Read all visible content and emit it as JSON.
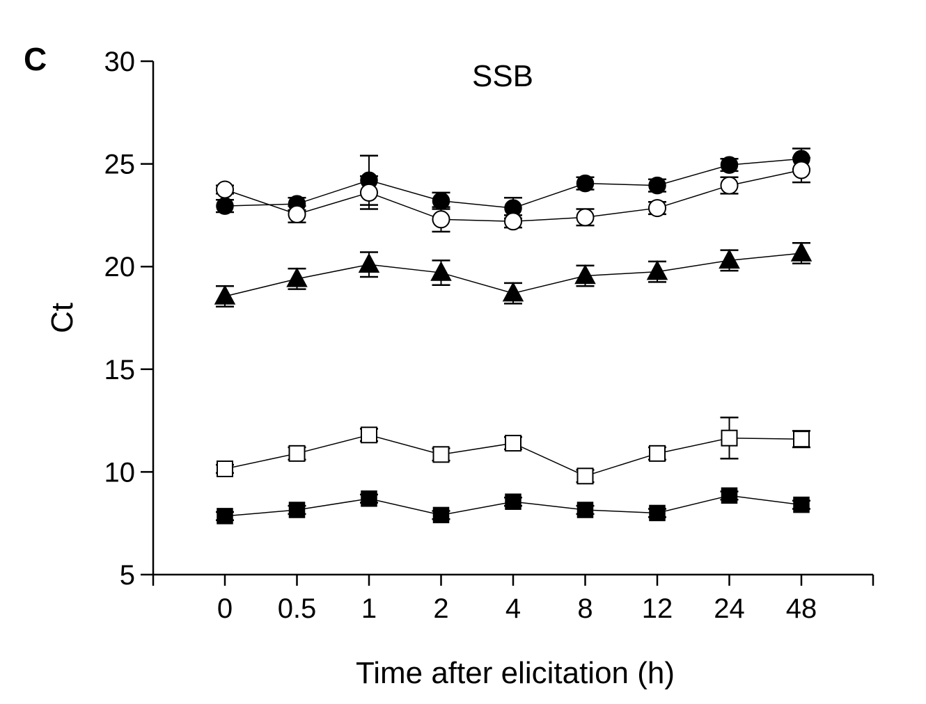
{
  "panel_label": "C",
  "chart_data": {
    "type": "line",
    "title": "SSB",
    "xlabel": "Time after elicitation (h)",
    "ylabel": "Ct",
    "categories": [
      "0",
      "0.5",
      "1",
      "2",
      "4",
      "8",
      "12",
      "24",
      "48"
    ],
    "ylim": [
      5,
      30
    ],
    "yticks": [
      5,
      10,
      15,
      20,
      25,
      30
    ],
    "grid": false,
    "legend": "none",
    "series": [
      {
        "marker": "circle-filled",
        "values": [
          22.95,
          23.05,
          24.2,
          23.2,
          22.85,
          24.05,
          23.95,
          24.95,
          25.25
        ],
        "errors": [
          0.3,
          0.3,
          1.2,
          0.4,
          0.5,
          0.3,
          0.3,
          0.3,
          0.5
        ]
      },
      {
        "marker": "circle-open",
        "values": [
          23.75,
          22.55,
          23.6,
          22.3,
          22.2,
          22.4,
          22.85,
          23.95,
          24.7
        ],
        "errors": [
          0.2,
          0.4,
          0.8,
          0.6,
          0.3,
          0.4,
          0.3,
          0.4,
          0.6
        ]
      },
      {
        "marker": "triangle-filled",
        "values": [
          18.55,
          19.4,
          20.1,
          19.7,
          18.7,
          19.55,
          19.75,
          20.3,
          20.65
        ],
        "errors": [
          0.5,
          0.5,
          0.6,
          0.6,
          0.5,
          0.5,
          0.5,
          0.5,
          0.5
        ]
      },
      {
        "marker": "square-open",
        "values": [
          10.15,
          10.9,
          11.8,
          10.85,
          11.4,
          9.8,
          10.9,
          11.65,
          11.6
        ],
        "errors": [
          0.2,
          0.3,
          0.3,
          0.3,
          0.3,
          0.3,
          0.3,
          1.0,
          0.4
        ]
      },
      {
        "marker": "square-filled",
        "values": [
          7.85,
          8.15,
          8.7,
          7.9,
          8.55,
          8.15,
          8.0,
          8.85,
          8.4
        ],
        "errors": [
          0.2,
          0.2,
          0.2,
          0.2,
          0.2,
          0.2,
          0.2,
          0.2,
          0.2
        ]
      }
    ]
  }
}
